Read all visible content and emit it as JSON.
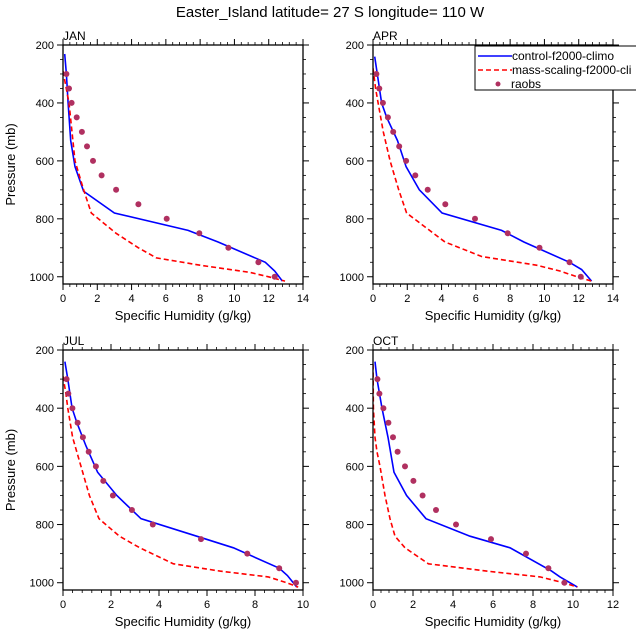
{
  "title": "Easter_Island  latitude= 27 S longitude= 110 W",
  "colors": {
    "control": "#0000ff",
    "mass_scaling": "#ff0000",
    "raobs": "#b03060"
  },
  "legend": {
    "entries": [
      {
        "label": "control-f2000-climo",
        "style": "solid-line"
      },
      {
        "label": "mass-scaling-f2000-cli",
        "style": "dashed-line"
      },
      {
        "label": "raobs",
        "style": "dot"
      }
    ]
  },
  "chart_data": [
    {
      "type": "line",
      "panel": "JAN",
      "title": "JAN",
      "xlabel": "Specific Humidity (g/kg)",
      "ylabel": "Pressure (mb)",
      "xlim": [
        0,
        14
      ],
      "ylim": [
        1025,
        200
      ],
      "xticks": [
        0,
        2,
        4,
        6,
        8,
        10,
        12,
        14
      ],
      "yticks": [
        200,
        400,
        600,
        800,
        1000
      ],
      "series": [
        {
          "name": "control-f2000-climo",
          "p": [
            231,
            300,
            400,
            530,
            620,
            705,
            780,
            840,
            880,
            950,
            980,
            1015
          ],
          "q": [
            0.1,
            0.2,
            0.3,
            0.45,
            0.7,
            1.2,
            3.0,
            7.3,
            9.05,
            11.8,
            12.35,
            12.8
          ]
        },
        {
          "name": "mass-scaling-f2000-cli",
          "p": [
            290,
            400,
            600,
            700,
            780,
            850,
            900,
            935,
            960,
            985,
            1000,
            1015
          ],
          "q": [
            0.0,
            0.35,
            0.7,
            1.2,
            1.65,
            3.1,
            4.4,
            5.45,
            8.0,
            10.9,
            12.0,
            12.95
          ]
        },
        {
          "name": "raobs",
          "p": [
            300,
            350,
            400,
            450,
            500,
            550,
            600,
            650,
            700,
            750,
            800,
            850,
            900,
            950,
            1000
          ],
          "q": [
            0.2,
            0.35,
            0.5,
            0.8,
            1.1,
            1.4,
            1.75,
            2.25,
            3.1,
            4.4,
            6.05,
            7.95,
            9.65,
            11.4,
            12.35
          ]
        }
      ]
    },
    {
      "type": "line",
      "panel": "APR",
      "title": "APR",
      "xlabel": "Specific Humidity (g/kg)",
      "ylabel": "",
      "xlim": [
        0,
        14
      ],
      "ylim": [
        1025,
        200
      ],
      "xticks": [
        0,
        2,
        4,
        6,
        8,
        10,
        12,
        14
      ],
      "yticks": [
        200,
        400,
        600,
        800,
        1000
      ],
      "series": [
        {
          "name": "control-f2000-climo",
          "p": [
            240,
            300,
            400,
            450,
            530,
            620,
            700,
            780,
            840,
            880,
            950,
            975,
            1015
          ],
          "q": [
            0.1,
            0.25,
            0.5,
            0.8,
            1.43,
            1.93,
            2.7,
            4.03,
            7.5,
            8.8,
            11.46,
            12.17,
            12.75
          ]
        },
        {
          "name": "mass-scaling-f2000-cli",
          "p": [
            280,
            350,
            400,
            500,
            600,
            700,
            780,
            840,
            880,
            930,
            960,
            980,
            1000,
            1015
          ],
          "q": [
            0.0,
            0.15,
            0.3,
            0.6,
            1.0,
            1.5,
            1.96,
            3.3,
            4.2,
            6.34,
            9.54,
            10.9,
            11.9,
            12.75
          ]
        },
        {
          "name": "raobs",
          "p": [
            300,
            350,
            400,
            450,
            500,
            550,
            600,
            650,
            700,
            750,
            800,
            850,
            900,
            950,
            1000
          ],
          "q": [
            0.2,
            0.37,
            0.58,
            0.87,
            1.18,
            1.53,
            1.93,
            2.47,
            3.19,
            4.22,
            5.95,
            7.86,
            9.71,
            11.46,
            12.12
          ]
        }
      ]
    },
    {
      "type": "line",
      "panel": "JUL",
      "title": "JUL",
      "xlabel": "Specific Humidity (g/kg)",
      "ylabel": "Pressure (mb)",
      "xlim": [
        0,
        10
      ],
      "ylim": [
        1025,
        200
      ],
      "xticks": [
        0,
        2,
        4,
        6,
        8,
        10
      ],
      "yticks": [
        200,
        400,
        600,
        800,
        1000
      ],
      "series": [
        {
          "name": "control-f2000-climo",
          "p": [
            240,
            300,
            400,
            450,
            530,
            620,
            700,
            780,
            840,
            880,
            950,
            975,
            1015
          ],
          "q": [
            0.08,
            0.2,
            0.38,
            0.58,
            0.96,
            1.44,
            2.24,
            3.25,
            5.57,
            7.1,
            9.01,
            9.35,
            9.74
          ]
        },
        {
          "name": "mass-scaling-f2000-cli",
          "p": [
            290,
            350,
            400,
            500,
            600,
            700,
            780,
            840,
            880,
            935,
            960,
            980,
            1000,
            1015
          ],
          "q": [
            0.0,
            0.12,
            0.2,
            0.4,
            0.75,
            1.1,
            1.5,
            2.35,
            3.2,
            4.6,
            6.54,
            8.55,
            9.32,
            9.8
          ]
        },
        {
          "name": "raobs",
          "p": [
            300,
            350,
            400,
            450,
            500,
            550,
            600,
            650,
            700,
            750,
            800,
            850,
            900,
            950,
            1000
          ],
          "q": [
            0.15,
            0.22,
            0.39,
            0.61,
            0.83,
            1.07,
            1.37,
            1.68,
            2.08,
            2.87,
            3.74,
            5.75,
            7.68,
            9.01,
            9.71
          ]
        }
      ]
    },
    {
      "type": "line",
      "panel": "OCT",
      "title": "OCT",
      "xlabel": "Specific Humidity (g/kg)",
      "ylabel": "",
      "xlim": [
        0,
        12
      ],
      "ylim": [
        1025,
        200
      ],
      "xticks": [
        0,
        2,
        4,
        6,
        8,
        10,
        12
      ],
      "yticks": [
        200,
        400,
        600,
        800,
        1000
      ],
      "series": [
        {
          "name": "control-f2000-climo",
          "p": [
            240,
            300,
            400,
            500,
            620,
            700,
            780,
            840,
            880,
            960,
            980,
            1015
          ],
          "q": [
            0.1,
            0.2,
            0.45,
            0.75,
            1.05,
            1.68,
            2.65,
            4.85,
            6.85,
            8.93,
            9.35,
            10.22
          ]
        },
        {
          "name": "mass-scaling-f2000-cli",
          "p": [
            250,
            400,
            500,
            550,
            600,
            700,
            780,
            840,
            880,
            935,
            960,
            980,
            1000,
            1015
          ],
          "q": [
            0.0,
            0.02,
            0.1,
            0.2,
            0.35,
            0.6,
            0.85,
            1.1,
            1.6,
            2.77,
            5.68,
            8.35,
            9.52,
            10.22
          ]
        },
        {
          "name": "raobs",
          "p": [
            300,
            350,
            400,
            450,
            500,
            550,
            600,
            650,
            700,
            750,
            800,
            850,
            900,
            950,
            1000
          ],
          "q": [
            0.22,
            0.32,
            0.52,
            0.77,
            1.0,
            1.23,
            1.6,
            2.02,
            2.48,
            3.15,
            4.15,
            5.9,
            7.65,
            8.77,
            9.57
          ]
        }
      ]
    }
  ]
}
